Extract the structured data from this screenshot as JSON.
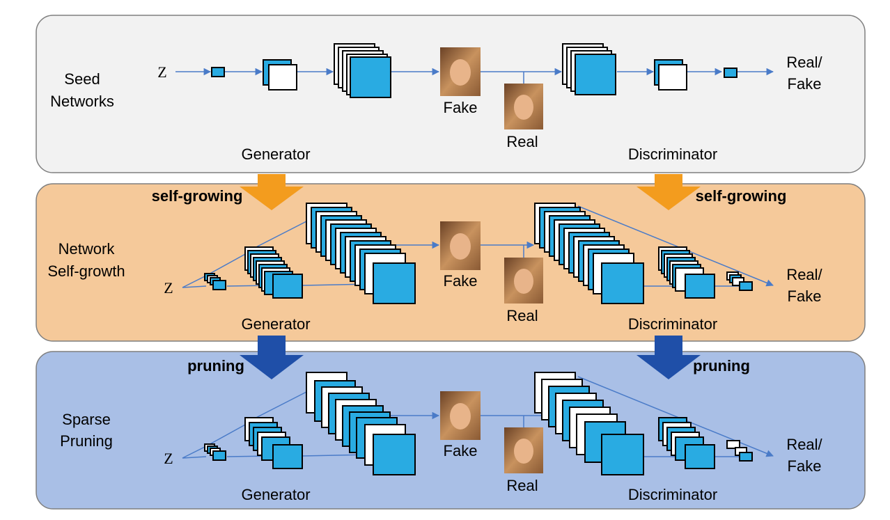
{
  "colors": {
    "seed_panel": "#f2f2f2",
    "growth_panel": "#f5c99a",
    "pruning_panel": "#a9bfe6",
    "layer_fill": "#29abe2",
    "connector": "#4a7bc8",
    "growth_arrow": "#f39c1e",
    "pruning_arrow": "#1f4fa8"
  },
  "icons": [
    "face-image-icon",
    "down-arrow-icon"
  ],
  "panels": [
    {
      "title_line1": "Seed",
      "title_line2": "Networks",
      "z": "Z",
      "fake": "Fake",
      "real": "Real",
      "output_line1": "Real/",
      "output_line2": "Fake",
      "generator": "Generator",
      "discriminator": "Discriminator"
    },
    {
      "title_line1": "Network",
      "title_line2": "Self-growth",
      "z": "Z",
      "fake": "Fake",
      "real": "Real",
      "output_line1": "Real/",
      "output_line2": "Fake",
      "generator": "Generator",
      "discriminator": "Discriminator"
    },
    {
      "title_line1": "Sparse",
      "title_line2": "Pruning",
      "z": "Z",
      "fake": "Fake",
      "real": "Real",
      "output_line1": "Real/",
      "output_line2": "Fake",
      "generator": "Generator",
      "discriminator": "Discriminator"
    }
  ],
  "transitions": {
    "growth_left": "self-growing",
    "growth_right": "self-growing",
    "pruning_left": "pruning",
    "pruning_right": "pruning"
  }
}
